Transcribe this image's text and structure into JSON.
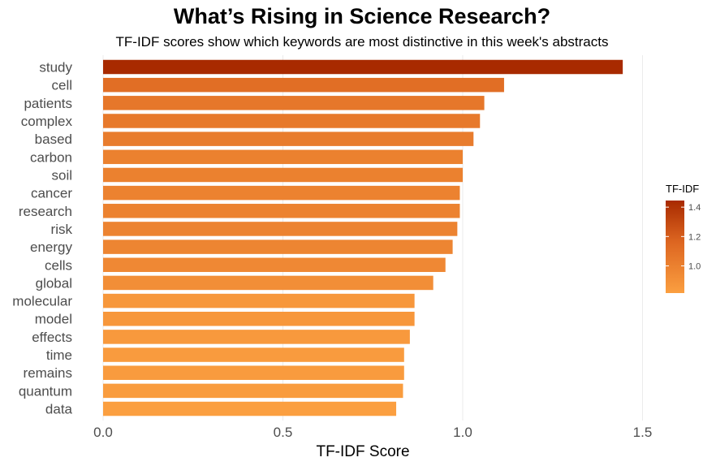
{
  "chart_data": {
    "type": "bar",
    "orientation": "horizontal",
    "title": "What’s Rising in Science Research?",
    "subtitle": "TF-IDF scores show which keywords are most distinctive in this week's abstracts",
    "xlabel": "TF-IDF Score",
    "ylabel": "",
    "xlim": [
      0,
      1.55
    ],
    "x_ticks": [
      0.0,
      0.5,
      1.0,
      1.5
    ],
    "x_tick_labels": [
      "0.0",
      "0.5",
      "1.0",
      "1.5"
    ],
    "grid": "vertical",
    "categories": [
      "study",
      "cell",
      "patients",
      "complex",
      "based",
      "carbon",
      "soil",
      "cancer",
      "research",
      "risk",
      "energy",
      "cells",
      "global",
      "molecular",
      "model",
      "effects",
      "time",
      "remains",
      "quantum",
      "data"
    ],
    "values": [
      1.445,
      1.115,
      1.06,
      1.048,
      1.03,
      1.0,
      1.0,
      0.992,
      0.992,
      0.985,
      0.972,
      0.952,
      0.918,
      0.866,
      0.866,
      0.853,
      0.837,
      0.837,
      0.834,
      0.815
    ],
    "legend": {
      "title": "TF-IDF",
      "placement": "right",
      "ticks": [
        1.0,
        1.2,
        1.4
      ],
      "tick_labels": [
        "1.0",
        "1.2",
        "1.4"
      ],
      "range": [
        0.815,
        1.445
      ]
    },
    "colors": {
      "low": "#fb9f40",
      "mid": "#dd6621",
      "high": "#a82a00",
      "gridline": "#ebebeb",
      "category_text": "#4d4d4d"
    }
  }
}
